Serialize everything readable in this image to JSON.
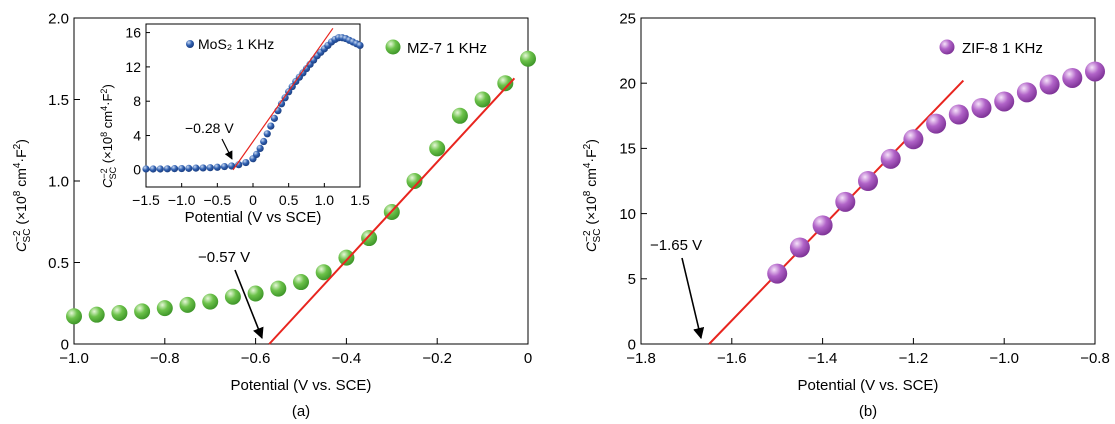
{
  "panels": [
    "(a)",
    "(b)"
  ],
  "colors": {
    "fit": "#e8251f",
    "green": "#5cbd3c",
    "purple": "#a64fbd",
    "blue": "#2a5aa8",
    "arrow": "#000000"
  },
  "chart_data": [
    {
      "type": "scatter",
      "label": "(a)",
      "xlabel": "Potential (V vs. SCE)",
      "ylabel_text": "C⁻² (×10⁸ cm⁴·F²)",
      "xlim": [
        -1.0,
        0.0
      ],
      "ylim": [
        0.0,
        2.0
      ],
      "xticks": [
        -1.0,
        -0.8,
        -0.6,
        -0.4,
        -0.2,
        0.0
      ],
      "xtick_labels": [
        "−1.0",
        "−0.8",
        "−0.6",
        "−0.4",
        "−0.2",
        "0"
      ],
      "yticks": [
        0.0,
        0.5,
        1.0,
        1.5,
        2.0
      ],
      "ytick_labels": [
        "0",
        "0.5",
        "1.0",
        "1.5",
        "2.0"
      ],
      "series": [
        {
          "name": "MZ-7  1 KHz",
          "x": [
            -1.0,
            -0.95,
            -0.9,
            -0.85,
            -0.8,
            -0.75,
            -0.7,
            -0.65,
            -0.6,
            -0.55,
            -0.5,
            -0.45,
            -0.4,
            -0.35,
            -0.3,
            -0.25,
            -0.2,
            -0.15,
            -0.1,
            -0.05,
            0.0
          ],
          "y": [
            0.17,
            0.18,
            0.19,
            0.2,
            0.22,
            0.24,
            0.26,
            0.29,
            0.31,
            0.34,
            0.38,
            0.44,
            0.53,
            0.65,
            0.81,
            1.0,
            1.2,
            1.4,
            1.5,
            1.6,
            1.75
          ]
        }
      ],
      "fit_line": {
        "x": [
          -0.57,
          -0.03
        ],
        "y": [
          0.0,
          1.63
        ]
      },
      "annotation": {
        "text": "−0.57 V",
        "x": -0.57,
        "y": 0.0
      },
      "inset": {
        "type": "scatter",
        "xlabel": "Potential (V vs SCE)",
        "ylabel_text": "C⁻² (×10⁸ cm⁴·F²)",
        "xlim": [
          -1.5,
          1.5
        ],
        "ylim": [
          -2,
          17
        ],
        "xticks": [
          -1.5,
          -1.0,
          -0.5,
          0.0,
          0.5,
          1.0,
          1.5
        ],
        "xtick_labels": [
          "−1.5",
          "−1.0",
          "−0.5",
          "0",
          "0.5",
          "1.0",
          "1.5"
        ],
        "yticks": [
          0,
          4,
          8,
          12,
          16
        ],
        "ytick_labels": [
          "0",
          "4",
          "8",
          "12",
          "16"
        ],
        "series": [
          {
            "name": "MoS₂  1 KHz",
            "x": [
              -1.5,
              -1.4,
              -1.3,
              -1.2,
              -1.1,
              -1.0,
              -0.9,
              -0.8,
              -0.7,
              -0.6,
              -0.5,
              -0.4,
              -0.3,
              -0.2,
              -0.1,
              0.0,
              0.05,
              0.1,
              0.15,
              0.2,
              0.25,
              0.3,
              0.35,
              0.4,
              0.45,
              0.5,
              0.55,
              0.6,
              0.65,
              0.7,
              0.75,
              0.8,
              0.85,
              0.9,
              0.95,
              1.0,
              1.05,
              1.1,
              1.15,
              1.2,
              1.25,
              1.3,
              1.35,
              1.4,
              1.45,
              1.5
            ],
            "y": [
              0.1,
              0.1,
              0.1,
              0.12,
              0.14,
              0.15,
              0.17,
              0.2,
              0.22,
              0.25,
              0.3,
              0.38,
              0.45,
              0.6,
              0.85,
              1.3,
              1.8,
              2.5,
              3.3,
              4.2,
              5.1,
              6.0,
              6.9,
              7.7,
              8.4,
              9.1,
              9.7,
              10.3,
              10.8,
              11.3,
              11.8,
              12.3,
              12.8,
              13.3,
              13.7,
              14.1,
              14.5,
              14.9,
              15.2,
              15.4,
              15.4,
              15.3,
              15.1,
              14.9,
              14.7,
              14.5
            ]
          }
        ],
        "fit_line": {
          "x": [
            -0.28,
            1.12
          ],
          "y": [
            0.0,
            16.5
          ]
        },
        "annotation": {
          "text": "−0.28 V",
          "x": -0.28,
          "y": 0.0
        }
      }
    },
    {
      "type": "scatter",
      "label": "(b)",
      "xlabel": "Potential (V vs. SCE)",
      "ylabel_text": "C⁻² (×10⁸ cm⁴·F²)",
      "xlim": [
        -1.8,
        -0.8
      ],
      "ylim": [
        0,
        25
      ],
      "xticks": [
        -1.8,
        -1.6,
        -1.4,
        -1.2,
        -1.0,
        -0.8
      ],
      "xtick_labels": [
        "−1.8",
        "−1.6",
        "−1.4",
        "−1.2",
        "−1.0",
        "−0.8"
      ],
      "yticks": [
        0,
        5,
        10,
        15,
        20,
        25
      ],
      "ytick_labels": [
        "0",
        "5",
        "10",
        "15",
        "20",
        "25"
      ],
      "series": [
        {
          "name": "ZIF-8  1 KHz",
          "x": [
            -1.5,
            -1.45,
            -1.4,
            -1.35,
            -1.3,
            -1.25,
            -1.2,
            -1.15,
            -1.1,
            -1.05,
            -1.0,
            -0.95,
            -0.9,
            -0.85,
            -0.8
          ],
          "y": [
            5.4,
            7.4,
            9.1,
            10.9,
            12.5,
            14.2,
            15.7,
            16.9,
            17.6,
            18.1,
            18.6,
            19.3,
            19.9,
            20.4,
            20.9
          ]
        }
      ],
      "fit_line": {
        "x": [
          -1.65,
          -1.09
        ],
        "y": [
          0.0,
          20.2
        ]
      },
      "annotation": {
        "text": "−1.65 V",
        "x": -1.65,
        "y": 0.0
      }
    }
  ]
}
